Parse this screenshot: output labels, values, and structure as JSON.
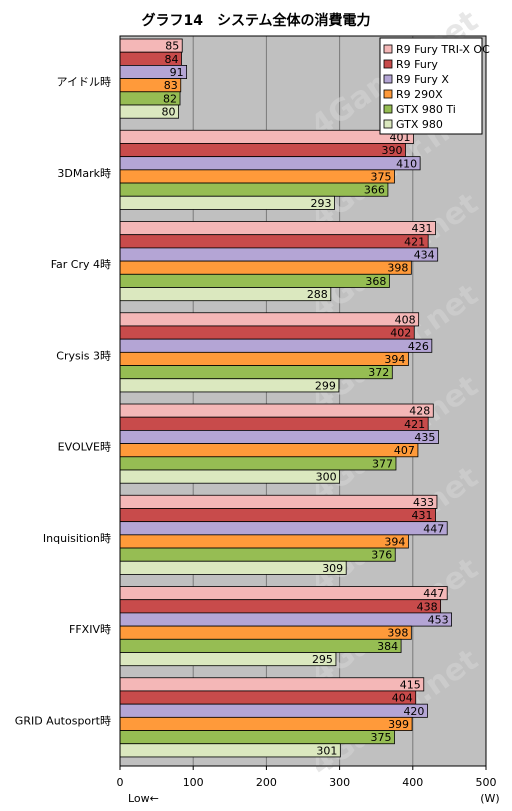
{
  "chart_data": {
    "type": "bar",
    "orientation": "horizontal",
    "title": "グラフ14　システム全体の消費電力",
    "categories": [
      "アイドル時",
      "3DMark時",
      "Far Cry 4時",
      "Crysis 3時",
      "EVOLVE時",
      "Inquisition時",
      "FFXIV時",
      "GRID Autosport時"
    ],
    "series": [
      {
        "name": "R9 Fury TRI-X OC",
        "color": "#f4b7b7",
        "values": [
          85,
          401,
          431,
          408,
          428,
          433,
          447,
          415
        ]
      },
      {
        "name": "R9 Fury",
        "color": "#c84b4b",
        "values": [
          84,
          390,
          421,
          402,
          421,
          431,
          438,
          404
        ]
      },
      {
        "name": "R9 Fury X",
        "color": "#b4a5d5",
        "values": [
          91,
          410,
          434,
          426,
          435,
          447,
          453,
          420
        ]
      },
      {
        "name": "R9 290X",
        "color": "#ff9a3a",
        "values": [
          83,
          375,
          398,
          394,
          407,
          394,
          398,
          399
        ]
      },
      {
        "name": "GTX 980 Ti",
        "color": "#96bd53",
        "values": [
          82,
          366,
          368,
          372,
          377,
          376,
          384,
          375
        ]
      },
      {
        "name": "GTX 980",
        "color": "#dbe8bf",
        "values": [
          80,
          293,
          288,
          299,
          300,
          309,
          295,
          301
        ]
      }
    ],
    "xlim": [
      0,
      500
    ],
    "xticks": [
      0,
      100,
      200,
      300,
      400,
      500
    ],
    "xlabel_left": "Low←",
    "xlabel_right": "(W)",
    "legend_position": "top-right",
    "grid": true,
    "plot_background": "#c0c0c0",
    "watermark": "4Gamer.net"
  }
}
